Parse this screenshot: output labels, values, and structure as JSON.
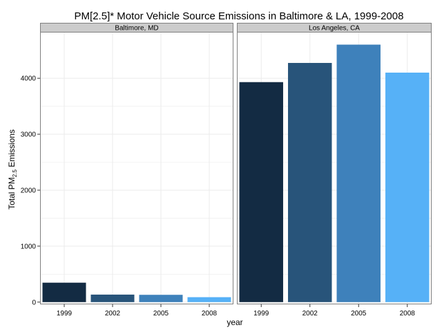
{
  "chart_data": {
    "type": "bar",
    "title": "PM[2.5]* Motor Vehicle Source Emissions in Baltimore & LA, 1999-2008",
    "xlabel": "year",
    "ylabel_main": "Total PM",
    "ylabel_sub": "2.5",
    "ylabel_tail": " Emissions",
    "categories": [
      "1999",
      "2002",
      "2005",
      "2008"
    ],
    "ylim": [
      -40,
      4830
    ],
    "yticks": [
      0,
      1000,
      2000,
      3000,
      4000
    ],
    "grid": true,
    "bar_colors": [
      "#132B43",
      "#28547A",
      "#3E81BB",
      "#56B1F7"
    ],
    "panel_bg": "#ffffff",
    "strip_bg": "#CCCCCC",
    "grid_color": "#EBEBEB",
    "facets": [
      {
        "name": "Baltimore, MD",
        "values": [
          347,
          134,
          130,
          88
        ]
      },
      {
        "name": "Los Angeles, CA",
        "values": [
          3931,
          4274,
          4601,
          4101
        ]
      }
    ]
  }
}
